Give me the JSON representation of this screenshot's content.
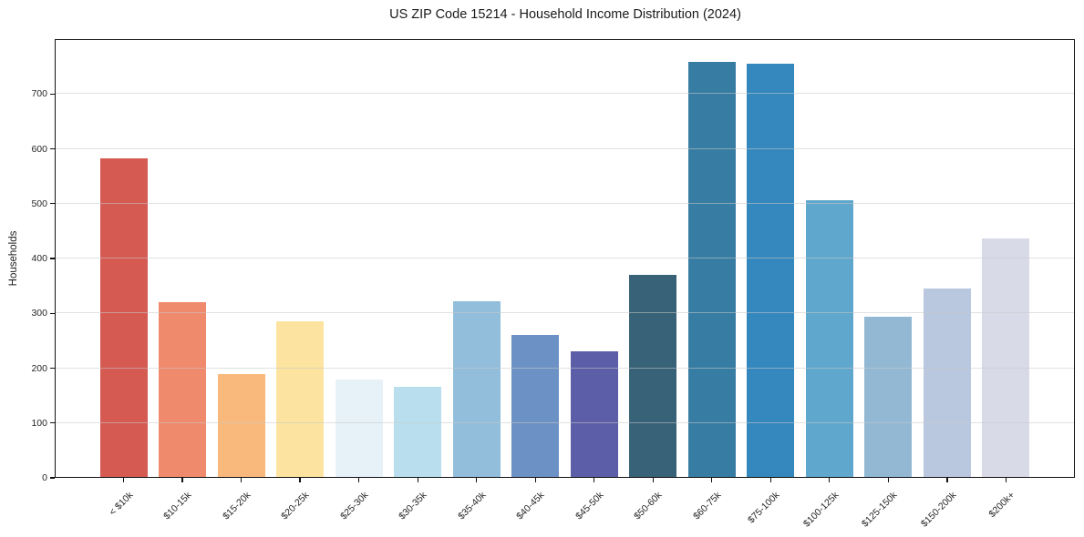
{
  "title": "US ZIP Code 15214 - Household Income Distribution (2024)",
  "y_axis_title": "Households",
  "chart_data": {
    "type": "bar",
    "title": "US ZIP Code 15214 - Household Income Distribution (2024)",
    "xlabel": "",
    "ylabel": "Households",
    "ylim": [
      0,
      800
    ],
    "yticks": [
      0,
      100,
      200,
      300,
      400,
      500,
      600,
      700
    ],
    "grid": "horizontal",
    "legend": "none",
    "categories": [
      "< $10k",
      "$10-15k",
      "$15-20k",
      "$20-25k",
      "$25-30k",
      "$30-35k",
      "$35-40k",
      "$40-45k",
      "$45-50k",
      "$50-60k",
      "$60-75k",
      "$75-100k",
      "$100-125k",
      "$125-150k",
      "$150-200k",
      "$200k+"
    ],
    "values": [
      583,
      321,
      190,
      286,
      179,
      166,
      322,
      261,
      230,
      371,
      758,
      756,
      507,
      294,
      346,
      436
    ],
    "bar_colors": [
      "#d55a52",
      "#f08a6c",
      "#f9b97c",
      "#fce4a0",
      "#e6f2f8",
      "#b9dfee",
      "#92bedc",
      "#6c91c4",
      "#5d5ea8",
      "#386277",
      "#377ca3",
      "#3488be",
      "#5fa7cd",
      "#92b8d4",
      "#b9c8df",
      "#d9dae8"
    ],
    "background_color": "#ffffff",
    "grid_color": "#e9e9e9",
    "spine_color": "#111111"
  }
}
